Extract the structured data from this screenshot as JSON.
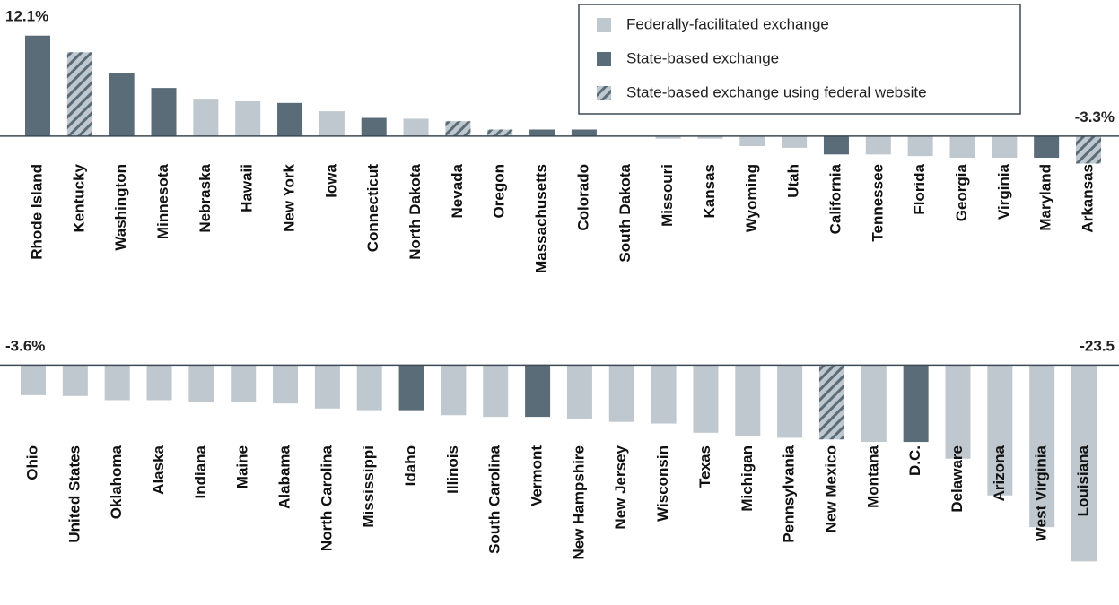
{
  "legend": [
    {
      "name": "Federally-facilitated exchange",
      "color": "#bfc8ce"
    },
    {
      "name": "State-based exchange",
      "color": "#5b6c79"
    },
    {
      "name": "State-based exchange using federal website",
      "color": "#bfc8ce",
      "hatch": "#5b6c79"
    }
  ],
  "chart_data": [
    {
      "type": "bar",
      "categories": [
        "Rhode Island",
        "Kentucky",
        "Washington",
        "Minnesota",
        "Nebraska",
        "Hawaii",
        "New York",
        "Iowa",
        "Connecticut",
        "North Dakota",
        "Nevada",
        "Oregon",
        "Massachusetts",
        "Colorado",
        "South Dakota",
        "Missouri",
        "Kansas",
        "Wyoming",
        "Utah",
        "California",
        "Tennessee",
        "Florida",
        "Georgia",
        "Virginia",
        "Maryland",
        "Arkansas"
      ],
      "values": [
        12.1,
        10.1,
        7.6,
        5.8,
        4.4,
        4.2,
        4.0,
        3.0,
        2.2,
        2.1,
        1.8,
        0.8,
        0.8,
        0.8,
        0,
        -0.3,
        -0.3,
        -1.2,
        -1.4,
        -2.2,
        -2.2,
        -2.4,
        -2.6,
        -2.6,
        -2.6,
        -3.3
      ],
      "value_labels": [
        "12.1%",
        null,
        null,
        null,
        null,
        null,
        null,
        null,
        null,
        null,
        null,
        null,
        null,
        null,
        null,
        null,
        null,
        null,
        null,
        null,
        null,
        null,
        null,
        null,
        null,
        "-3.3%"
      ],
      "kinds": [
        1,
        2,
        1,
        1,
        0,
        0,
        1,
        0,
        1,
        0,
        2,
        2,
        1,
        1,
        0,
        0,
        0,
        0,
        0,
        1,
        0,
        0,
        0,
        0,
        1,
        2
      ],
      "ylim": [
        -4,
        12.5
      ]
    },
    {
      "type": "bar",
      "categories": [
        "Ohio",
        "United States",
        "Oklahoma",
        "Alaska",
        "Indiana",
        "Maine",
        "Alabama",
        "North Carolina",
        "Mississippi",
        "Idaho",
        "Illinois",
        "South Carolina",
        "Vermont",
        "New Hampshire",
        "New Jersey",
        "Wisconsin",
        "Texas",
        "Michigan",
        "Pennsylvania",
        "New Mexico",
        "Montana",
        "D.C.",
        "Delaware",
        "Arizona",
        "West Virginia",
        "Louisiana"
      ],
      "values": [
        -3.6,
        -3.7,
        -4.2,
        -4.2,
        -4.4,
        -4.4,
        -4.6,
        -5.2,
        -5.4,
        -5.4,
        -6.0,
        -6.2,
        -6.2,
        -6.4,
        -6.8,
        -7.0,
        -8.1,
        -8.5,
        -8.7,
        -8.9,
        -9.2,
        -9.2,
        -11.2,
        -15.6,
        -19.4,
        -23.5
      ],
      "value_labels": [
        "-3.6%",
        null,
        null,
        null,
        null,
        null,
        null,
        null,
        null,
        null,
        null,
        null,
        null,
        null,
        null,
        null,
        null,
        null,
        null,
        null,
        null,
        null,
        null,
        null,
        null,
        "-23.5"
      ],
      "kinds": [
        0,
        0,
        0,
        0,
        0,
        0,
        0,
        0,
        0,
        1,
        0,
        0,
        1,
        0,
        0,
        0,
        0,
        0,
        0,
        2,
        0,
        1,
        0,
        0,
        0,
        0
      ],
      "ylim": [
        -24,
        1
      ]
    }
  ]
}
